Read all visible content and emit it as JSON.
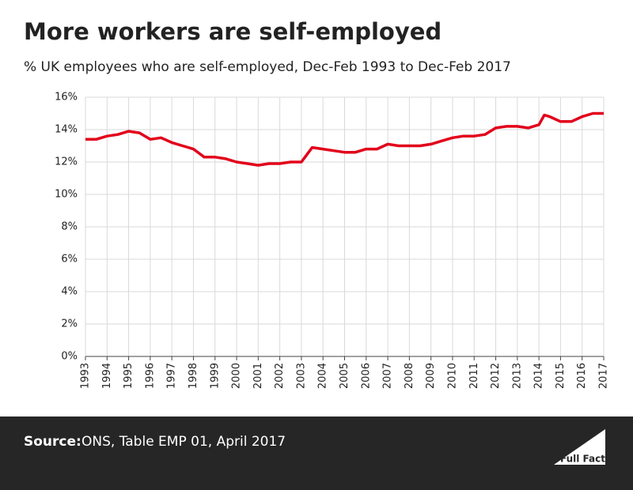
{
  "chart_data": {
    "type": "line",
    "title": "More workers are self-employed",
    "subtitle": "% UK employees who are self-employed, Dec-Feb 1993 to Dec-Feb 2017",
    "x": [
      1993,
      1993.5,
      1994,
      1994.5,
      1995,
      1995.5,
      1996,
      1996.5,
      1997,
      1997.5,
      1998,
      1998.5,
      1999,
      1999.5,
      2000,
      2000.5,
      2001,
      2001.5,
      2002,
      2002.5,
      2003,
      2003.5,
      2004,
      2004.5,
      2005,
      2005.5,
      2006,
      2006.5,
      2007,
      2007.5,
      2008,
      2008.5,
      2009,
      2009.5,
      2010,
      2010.5,
      2011,
      2011.5,
      2012,
      2012.5,
      2013,
      2013.5,
      2014,
      2014.25,
      2014.5,
      2015,
      2015.5,
      2016,
      2016.5,
      2017
    ],
    "values": [
      13.4,
      13.4,
      13.6,
      13.7,
      13.9,
      13.8,
      13.4,
      13.5,
      13.2,
      13.0,
      12.8,
      12.3,
      12.3,
      12.2,
      12.0,
      11.9,
      11.8,
      11.9,
      11.9,
      12.0,
      12.0,
      12.9,
      12.8,
      12.7,
      12.6,
      12.6,
      12.8,
      12.8,
      13.1,
      13.0,
      13.0,
      13.0,
      13.1,
      13.3,
      13.5,
      13.6,
      13.6,
      13.7,
      14.1,
      14.2,
      14.2,
      14.1,
      14.3,
      14.9,
      14.8,
      14.5,
      14.5,
      14.8,
      15.0,
      15.0
    ],
    "color": "#e2001a",
    "xlim": [
      1993,
      2017
    ],
    "xticks": [
      1993,
      1994,
      1995,
      1996,
      1997,
      1998,
      1999,
      2000,
      2001,
      2002,
      2003,
      2004,
      2005,
      2006,
      2007,
      2008,
      2009,
      2010,
      2011,
      2012,
      2013,
      2014,
      2015,
      2016,
      2017
    ],
    "ylim": [
      0,
      16
    ],
    "yticks": [
      {
        "value": 0,
        "label": "0%"
      },
      {
        "value": 2,
        "label": "2%"
      },
      {
        "value": 4,
        "label": "4%"
      },
      {
        "value": 6,
        "label": "6%"
      },
      {
        "value": 8,
        "label": "8%"
      },
      {
        "value": 10,
        "label": "10%"
      },
      {
        "value": 12,
        "label": "12%"
      },
      {
        "value": 14,
        "label": "14%"
      },
      {
        "value": 16,
        "label": "16%"
      }
    ],
    "grid": true
  },
  "footer": {
    "source_label": "Source:",
    "source": "ONS, Table EMP 01, April 2017",
    "logo": "Full Fact"
  }
}
